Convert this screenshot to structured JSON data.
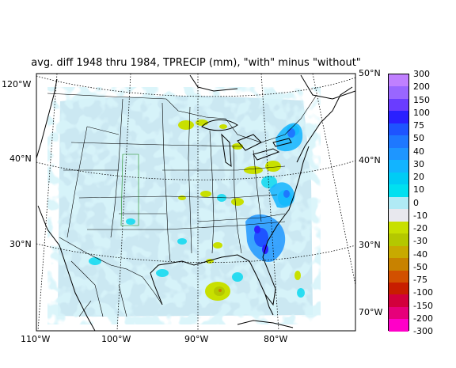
{
  "title": "avg. diff 1948 thru 1984, TPRECIP (mm), \"with\" minus \"without\"",
  "lon_labels_bottom": [
    "110°W",
    "100°W",
    "90°W",
    "80°W"
  ],
  "lon_label_left_top": "120°W",
  "lon_label_right_bottom": "70°W",
  "lat_labels_left": [
    "40°N",
    "30°N"
  ],
  "lat_labels_right": [
    "50°N",
    "40°N",
    "30°N"
  ],
  "colorbar": {
    "labels": [
      "300",
      "200",
      "150",
      "100",
      "75",
      "50",
      "40",
      "30",
      "20",
      "10",
      "0",
      "-10",
      "-20",
      "-30",
      "-40",
      "-50",
      "-75",
      "-100",
      "-150",
      "-200",
      "-300"
    ],
    "colors": [
      "#c080ff",
      "#9966ff",
      "#6a3cff",
      "#2a20ff",
      "#1e54ff",
      "#1e78ff",
      "#1e96ff",
      "#12b4ff",
      "#00ccf5",
      "#00e0f0",
      "#b0eaf5",
      "#e8e8ee",
      "#c8e000",
      "#b4c800",
      "#c8aa00",
      "#c88200",
      "#d25000",
      "#c81e00",
      "#d2003c",
      "#e6007a",
      "#ff00c8"
    ]
  }
}
